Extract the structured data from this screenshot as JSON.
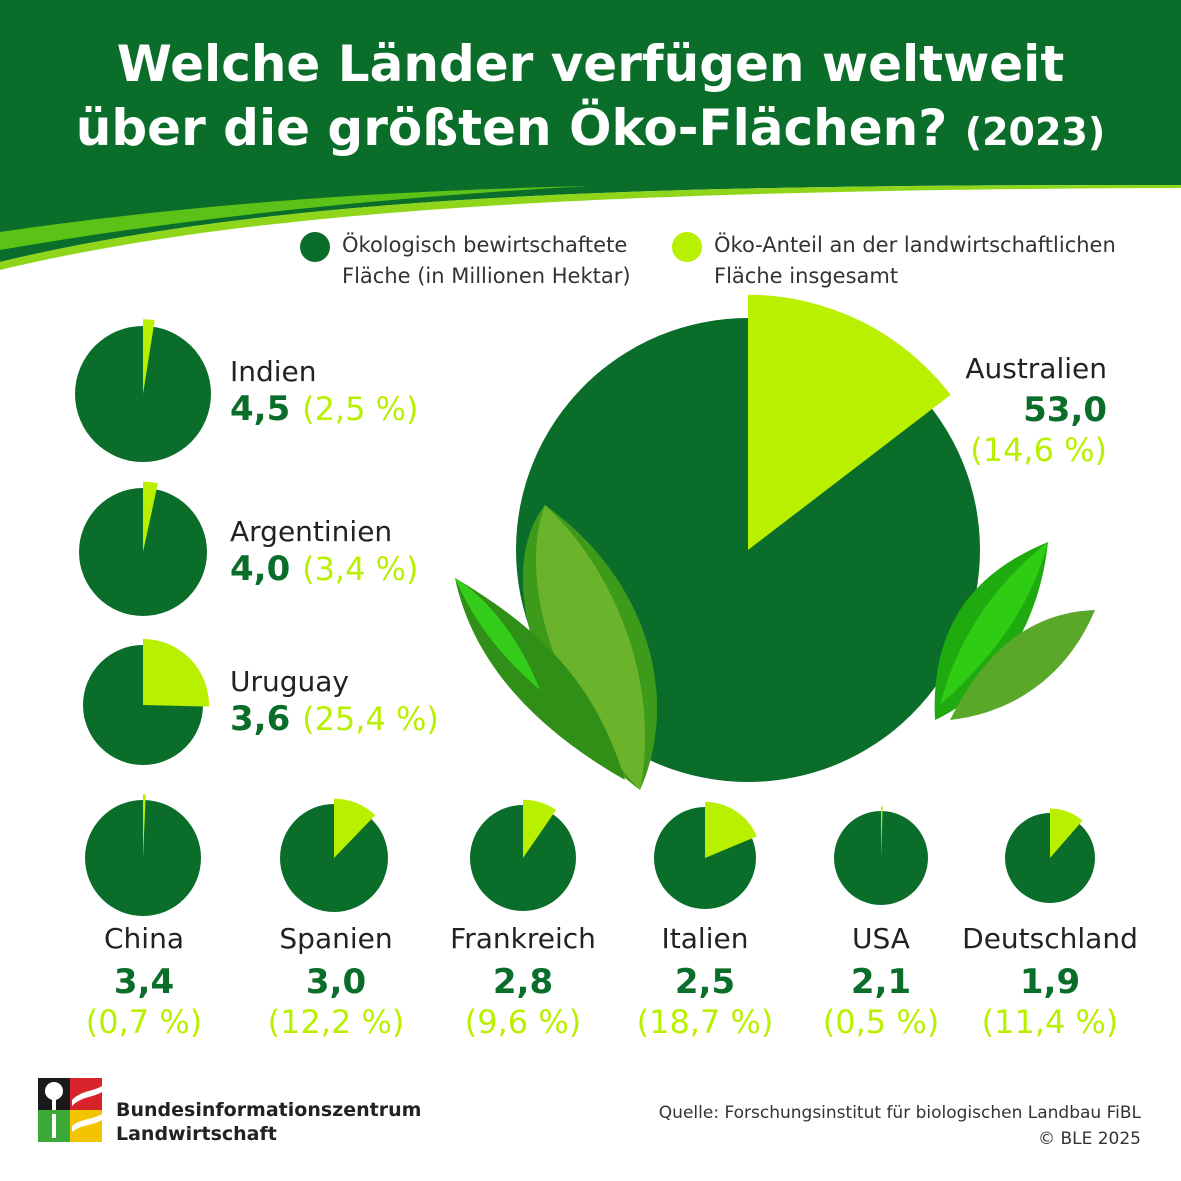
{
  "header": {
    "title_line1": "Welche Länder verfügen weltweit",
    "title_line2": "über die größten Öko-Flächen?",
    "year": "(2023)"
  },
  "legend": {
    "area_label": "Ökologisch bewirtschaftete\nFläche (in Millionen Hektar)",
    "share_label": "Öko-Anteil an der landwirtschaftlichen\nFläche insgesamt"
  },
  "colors": {
    "dark_green": "#0a6e2a",
    "light_green": "#b9f000",
    "header_green": "#0a6e2a"
  },
  "chart_data": {
    "type": "pie",
    "title": "Welche Länder verfügen weltweit über die größten Öko-Flächen? (2023)",
    "series": [
      {
        "name": "Ökologisch bewirtschaftete Fläche (in Millionen Hektar)"
      },
      {
        "name": "Öko-Anteil an der landwirtschaftlichen Fläche insgesamt"
      }
    ],
    "countries": [
      {
        "name": "Australien",
        "area": 53.0,
        "area_label": "53,0",
        "share": 14.6,
        "share_label": "(14,6 %)"
      },
      {
        "name": "Indien",
        "area": 4.5,
        "area_label": "4,5",
        "share": 2.5,
        "share_label": "(2,5 %)"
      },
      {
        "name": "Argentinien",
        "area": 4.0,
        "area_label": "4,0",
        "share": 3.4,
        "share_label": "(3,4 %)"
      },
      {
        "name": "Uruguay",
        "area": 3.6,
        "area_label": "3,6",
        "share": 25.4,
        "share_label": "(25,4 %)"
      },
      {
        "name": "China",
        "area": 3.4,
        "area_label": "3,4",
        "share": 0.7,
        "share_label": "(0,7 %)"
      },
      {
        "name": "Spanien",
        "area": 3.0,
        "area_label": "3,0",
        "share": 12.2,
        "share_label": "(12,2 %)"
      },
      {
        "name": "Frankreich",
        "area": 2.8,
        "area_label": "2,8",
        "share": 9.6,
        "share_label": "(9,6 %)"
      },
      {
        "name": "Italien",
        "area": 2.5,
        "area_label": "2,5",
        "share": 18.7,
        "share_label": "(18,7 %)"
      },
      {
        "name": "USA",
        "area": 2.1,
        "area_label": "2,1",
        "share": 0.5,
        "share_label": "(0,5 %)"
      },
      {
        "name": "Deutschland",
        "area": 1.9,
        "area_label": "1,9",
        "share": 11.4,
        "share_label": "(11,4 %)"
      }
    ]
  },
  "footer": {
    "org_line1": "Bundesinformationszentrum",
    "org_line2": "Landwirtschaft",
    "source": "Quelle: Forschungsinstitut für biologischen Landbau FiBL",
    "copyright": "© BLE 2025",
    "logo_icon": "ble-logo-icon"
  }
}
